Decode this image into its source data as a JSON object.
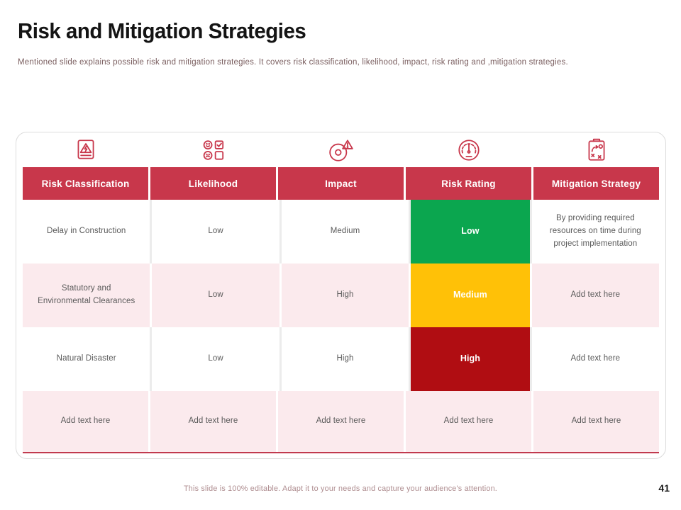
{
  "slide": {
    "title": "Risk and Mitigation Strategies",
    "subtitle": "Mentioned slide explains possible risk and mitigation strategies. It covers risk classification, likelihood, impact, risk rating and ,mitigation strategies.",
    "footer_note": "This slide is 100% editable. Adapt it to your needs and capture your audience's attention.",
    "page_number": "41"
  },
  "colors": {
    "accent_red": "#C8374B",
    "rating_low_green": "#0BA64F",
    "rating_medium_amber": "#FFC107",
    "rating_high_red": "#B00D12",
    "row_pink": "#FBEAED",
    "cell_text": "#5A5A5A",
    "bottom_rule": "#C13A4E",
    "subtitle_text": "#7A5E5F",
    "footer_text": "#AE8C8F"
  },
  "table": {
    "columns": [
      {
        "label": "Risk Classification",
        "icon": "risk-classification-icon"
      },
      {
        "label": "Likelihood",
        "icon": "likelihood-icon"
      },
      {
        "label": "Impact",
        "icon": "impact-icon"
      },
      {
        "label": "Risk Rating",
        "icon": "risk-rating-icon"
      },
      {
        "label": "Mitigation Strategy",
        "icon": "mitigation-strategy-icon"
      }
    ],
    "rows": [
      {
        "bg": "white",
        "cells": [
          {
            "text": "Delay in Construction"
          },
          {
            "text": "Low"
          },
          {
            "text": "Medium"
          },
          {
            "text": "Low",
            "rating": "rating_low_green"
          },
          {
            "text": "By providing required resources on time during project implementation"
          }
        ]
      },
      {
        "bg": "pink",
        "cells": [
          {
            "text": "Statutory and Environmental Clearances"
          },
          {
            "text": "Low"
          },
          {
            "text": "High"
          },
          {
            "text": "Medium",
            "rating": "rating_medium_amber"
          },
          {
            "text": "Add text here"
          }
        ]
      },
      {
        "bg": "white",
        "cells": [
          {
            "text": "Natural Disaster"
          },
          {
            "text": "Low"
          },
          {
            "text": "High"
          },
          {
            "text": "High",
            "rating": "rating_high_red"
          },
          {
            "text": "Add text here"
          }
        ]
      },
      {
        "bg": "pink",
        "cells": [
          {
            "text": "Add text here"
          },
          {
            "text": "Add text here"
          },
          {
            "text": "Add text here"
          },
          {
            "text": "Add text here"
          },
          {
            "text": "Add text here"
          }
        ]
      }
    ]
  }
}
